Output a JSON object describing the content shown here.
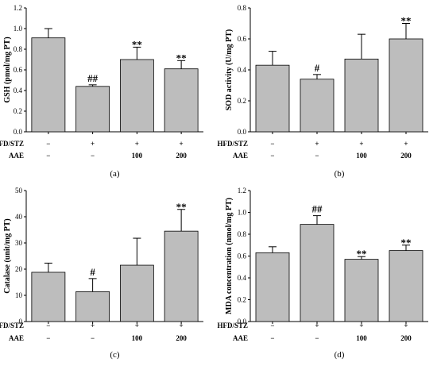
{
  "chart_data": [
    {
      "type": "bar",
      "panel_label": "(a)",
      "ylabel": "GSH (pmol/mg PT)",
      "ylim": [
        0,
        1.2
      ],
      "yticks": [
        "0.0",
        "0.2",
        "0.4",
        "0.6",
        "0.8",
        "1.0",
        "1.2"
      ],
      "groups": [
        {
          "name": "HFD/STZ",
          "levels": [
            "−",
            "+",
            "+",
            "+"
          ]
        },
        {
          "name": "AAE",
          "levels": [
            "−",
            "−",
            "100",
            "200"
          ]
        }
      ],
      "values": [
        0.91,
        0.44,
        0.7,
        0.61
      ],
      "errors": [
        0.09,
        0.015,
        0.12,
        0.08
      ],
      "significance": [
        "",
        "##",
        "**",
        "**"
      ],
      "bar_color": "#bdbdbd"
    },
    {
      "type": "bar",
      "panel_label": "(b)",
      "ylabel": "SOD activity (U/mg PT)",
      "ylim": [
        0,
        0.8
      ],
      "yticks": [
        "0.0",
        "0.2",
        "0.4",
        "0.6",
        "0.8"
      ],
      "groups": [
        {
          "name": "HFD/STZ",
          "levels": [
            "−",
            "+",
            "+",
            "+"
          ]
        },
        {
          "name": "AAE",
          "levels": [
            "−",
            "−",
            "100",
            "200"
          ]
        }
      ],
      "values": [
        0.43,
        0.34,
        0.47,
        0.6
      ],
      "errors": [
        0.09,
        0.03,
        0.16,
        0.1
      ],
      "significance": [
        "",
        "#",
        "",
        "**"
      ],
      "bar_color": "#bdbdbd"
    },
    {
      "type": "bar",
      "panel_label": "(c)",
      "ylabel": "Catalase (unit/mg PT)",
      "ylim": [
        0,
        50
      ],
      "yticks": [
        "0",
        "10",
        "20",
        "30",
        "40",
        "50"
      ],
      "groups": [
        {
          "name": "HFD/STZ",
          "levels": [
            "−",
            "+",
            "+",
            "+"
          ]
        },
        {
          "name": "AAE",
          "levels": [
            "−",
            "−",
            "100",
            "200"
          ]
        }
      ],
      "values": [
        18.8,
        11.4,
        21.5,
        34.5
      ],
      "errors": [
        3.5,
        5.0,
        10.3,
        8.3
      ],
      "significance": [
        "",
        "#",
        "",
        "**"
      ],
      "bar_color": "#bdbdbd"
    },
    {
      "type": "bar",
      "panel_label": "(d)",
      "ylabel": "MDA concentration (nmol/mg PT)",
      "ylim": [
        0,
        1.2
      ],
      "yticks": [
        "0.0",
        "0.2",
        "0.4",
        "0.6",
        "0.8",
        "1.0",
        "1.2"
      ],
      "groups": [
        {
          "name": "HFD/STZ",
          "levels": [
            "−",
            "+",
            "+",
            "+"
          ]
        },
        {
          "name": "AAE",
          "levels": [
            "−",
            "−",
            "100",
            "200"
          ]
        }
      ],
      "values": [
        0.63,
        0.89,
        0.57,
        0.65
      ],
      "errors": [
        0.055,
        0.08,
        0.025,
        0.05
      ],
      "significance": [
        "",
        "##",
        "**",
        "**"
      ],
      "bar_color": "#bdbdbd"
    }
  ]
}
